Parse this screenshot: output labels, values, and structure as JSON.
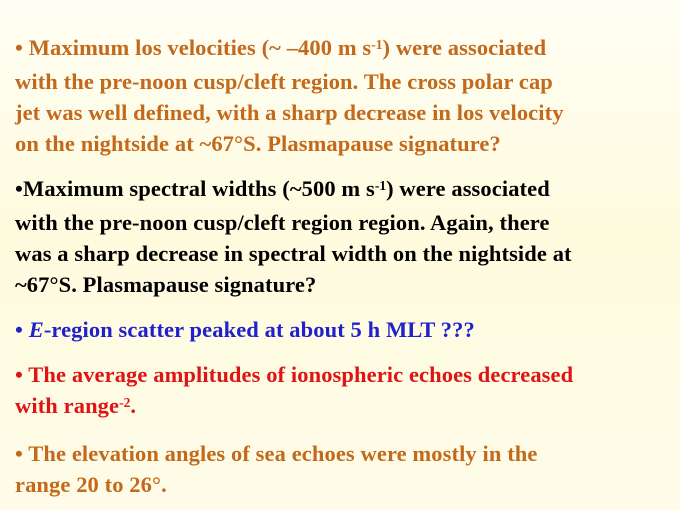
{
  "slide": {
    "background": {
      "top": "#FFFEF4",
      "middle": "#FEFBDE",
      "bottom": "#FEFCE8"
    },
    "text_colors": {
      "orange": "#C2691C",
      "black": "#000000",
      "blue": "#2121CC",
      "red": "#DF1414"
    },
    "bullets": [
      {
        "id": "los-velocities",
        "color": "#C2691C",
        "marker": "• ",
        "lines": [
          [
            {
              "t": "Maximum los velocities (~ –400 m s"
            },
            {
              "t": "-1",
              "sup": true
            },
            {
              "t": ") were associated"
            }
          ],
          [
            {
              "t": "with the pre-noon cusp/cleft region. The cross polar cap"
            }
          ],
          [
            {
              "t": "jet was well defined, with a sharp decrease in los velocity"
            }
          ],
          [
            {
              "t": "on the nightside at ~67°S. Plasmapause signature?"
            }
          ]
        ]
      },
      {
        "id": "spectral-widths",
        "color": "#000000",
        "marker": "•",
        "lines": [
          [
            {
              "t": "Maximum spectral widths (~500 m s"
            },
            {
              "t": "-1",
              "sup": true
            },
            {
              "t": ") were associated"
            }
          ],
          [
            {
              "t": "with the pre-noon cusp/cleft region region. Again, there"
            }
          ],
          [
            {
              "t": "was a sharp decrease in spectral width on the nightside at"
            }
          ],
          [
            {
              "t": "~67°S. Plasmapause signature?"
            }
          ]
        ]
      },
      {
        "id": "e-region-scatter",
        "color": "#2121CC",
        "marker": "• ",
        "lines": [
          [
            {
              "t": "E",
              "italic": true
            },
            {
              "t": "-region scatter peaked at about 5 h MLT ???"
            }
          ]
        ]
      },
      {
        "id": "average-amplitudes",
        "color": "#DF1414",
        "marker": "• ",
        "lines": [
          [
            {
              "t": "The average amplitudes of ionospheric echoes decreased"
            }
          ],
          [
            {
              "t": "with range"
            },
            {
              "t": "-2",
              "sup": true
            },
            {
              "t": "."
            }
          ]
        ]
      },
      {
        "id": "elevation-angles",
        "color": "#C2691C",
        "marker": "• ",
        "lines": [
          [
            {
              "t": "The elevation angles of sea echoes were mostly in the"
            }
          ],
          [
            {
              "t": "range 20 to 26°."
            }
          ]
        ]
      }
    ]
  }
}
